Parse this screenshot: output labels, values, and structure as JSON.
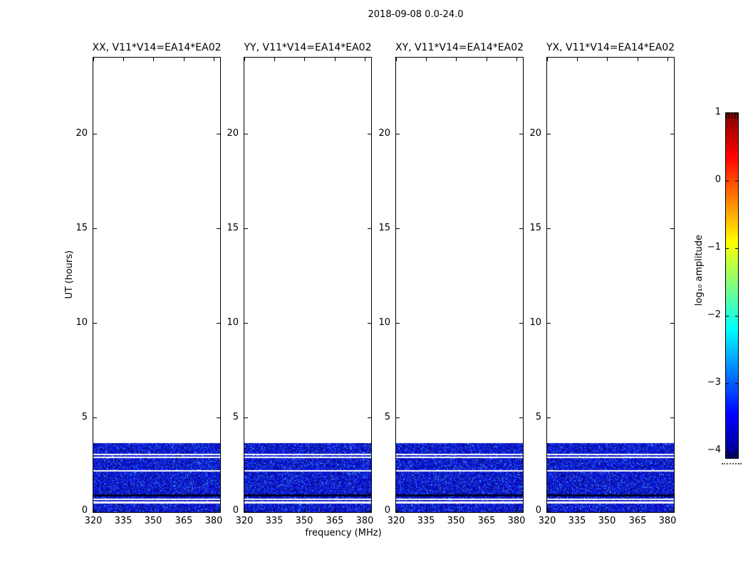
{
  "figure": {
    "title": "2018-09-08 0.0-24.0",
    "xlabel": "frequency (MHz)",
    "ylabel": "UT (hours)"
  },
  "panels": [
    {
      "title": "XX, V11*V14=EA14*EA02"
    },
    {
      "title": "YY, V11*V14=EA14*EA02"
    },
    {
      "title": "XY, V11*V14=EA14*EA02"
    },
    {
      "title": "YX, V11*V14=EA14*EA02"
    }
  ],
  "axes": {
    "x_ticks": [
      320,
      335,
      350,
      365,
      380
    ],
    "x_tick_labels": [
      "320",
      "335",
      "350",
      "365",
      "380"
    ],
    "x_range": [
      320,
      383.2
    ],
    "y_ticks": [
      0,
      5,
      10,
      15,
      20
    ],
    "y_tick_labels": [
      "0",
      "5",
      "10",
      "15",
      "20"
    ],
    "y_range": [
      0,
      24
    ]
  },
  "colorbar": {
    "label": "log₁₀ amplitude",
    "ticks": [
      1,
      0,
      -1,
      -2,
      -3,
      -4
    ],
    "tick_labels": [
      "1",
      "0",
      "−1",
      "−2",
      "−3",
      "−4"
    ],
    "range": [
      -4,
      1
    ],
    "colormap": "jet"
  },
  "colors": {
    "background": "#ffffff",
    "spine": "#000000",
    "data_noise_blue": "#0a1ed2",
    "data_low_black": "#000018",
    "flagged_white": "#ffffff"
  },
  "chart_data": {
    "type": "heatmap",
    "title": "2018-09-08 0.0-24.0",
    "xlabel": "frequency (MHz)",
    "ylabel": "UT (hours)",
    "x_range_mhz": [
      320,
      383.2
    ],
    "y_range_hours": [
      0,
      24
    ],
    "x_ticks": [
      320,
      335,
      350,
      365,
      380
    ],
    "y_ticks": [
      0,
      5,
      10,
      15,
      20
    ],
    "panels": [
      "XX, V11*V14=EA14*EA02",
      "YY, V11*V14=EA14*EA02",
      "XY, V11*V14=EA14*EA02",
      "YX, V11*V14=EA14*EA02"
    ],
    "colorbar": {
      "label": "log₁₀ amplitude",
      "range": [
        -4,
        1
      ],
      "ticks": [
        1,
        0,
        -1,
        -2,
        -3,
        -4
      ],
      "colormap": "jet"
    },
    "data_extent_note": "identical band structure in all four panels; no data above 3.63 h",
    "data_bands_hours": [
      {
        "t_start": 0.0,
        "t_end": 0.45,
        "kind": "data",
        "approx_log10_amp": -3.3
      },
      {
        "t_start": 0.45,
        "t_end": 0.56,
        "kind": "flagged"
      },
      {
        "t_start": 0.56,
        "t_end": 0.64,
        "kind": "data",
        "approx_log10_amp": -3.3
      },
      {
        "t_start": 0.64,
        "t_end": 0.71,
        "kind": "flagged"
      },
      {
        "t_start": 0.71,
        "t_end": 0.82,
        "kind": "data",
        "approx_log10_amp": -3.3
      },
      {
        "t_start": 0.82,
        "t_end": 0.94,
        "kind": "data_low",
        "approx_log10_amp": -4.0
      },
      {
        "t_start": 0.94,
        "t_end": 2.13,
        "kind": "data",
        "approx_log10_amp": -3.3
      },
      {
        "t_start": 2.13,
        "t_end": 2.21,
        "kind": "flagged"
      },
      {
        "t_start": 2.21,
        "t_end": 2.85,
        "kind": "data",
        "approx_log10_amp": -3.3
      },
      {
        "t_start": 2.85,
        "t_end": 2.92,
        "kind": "flagged"
      },
      {
        "t_start": 2.92,
        "t_end": 3.0,
        "kind": "data",
        "approx_log10_amp": -3.3
      },
      {
        "t_start": 3.0,
        "t_end": 3.07,
        "kind": "flagged"
      },
      {
        "t_start": 3.07,
        "t_end": 3.63,
        "kind": "data",
        "approx_log10_amp": -3.3
      },
      {
        "t_start": 3.63,
        "t_end": 24.0,
        "kind": "no_data"
      }
    ]
  }
}
